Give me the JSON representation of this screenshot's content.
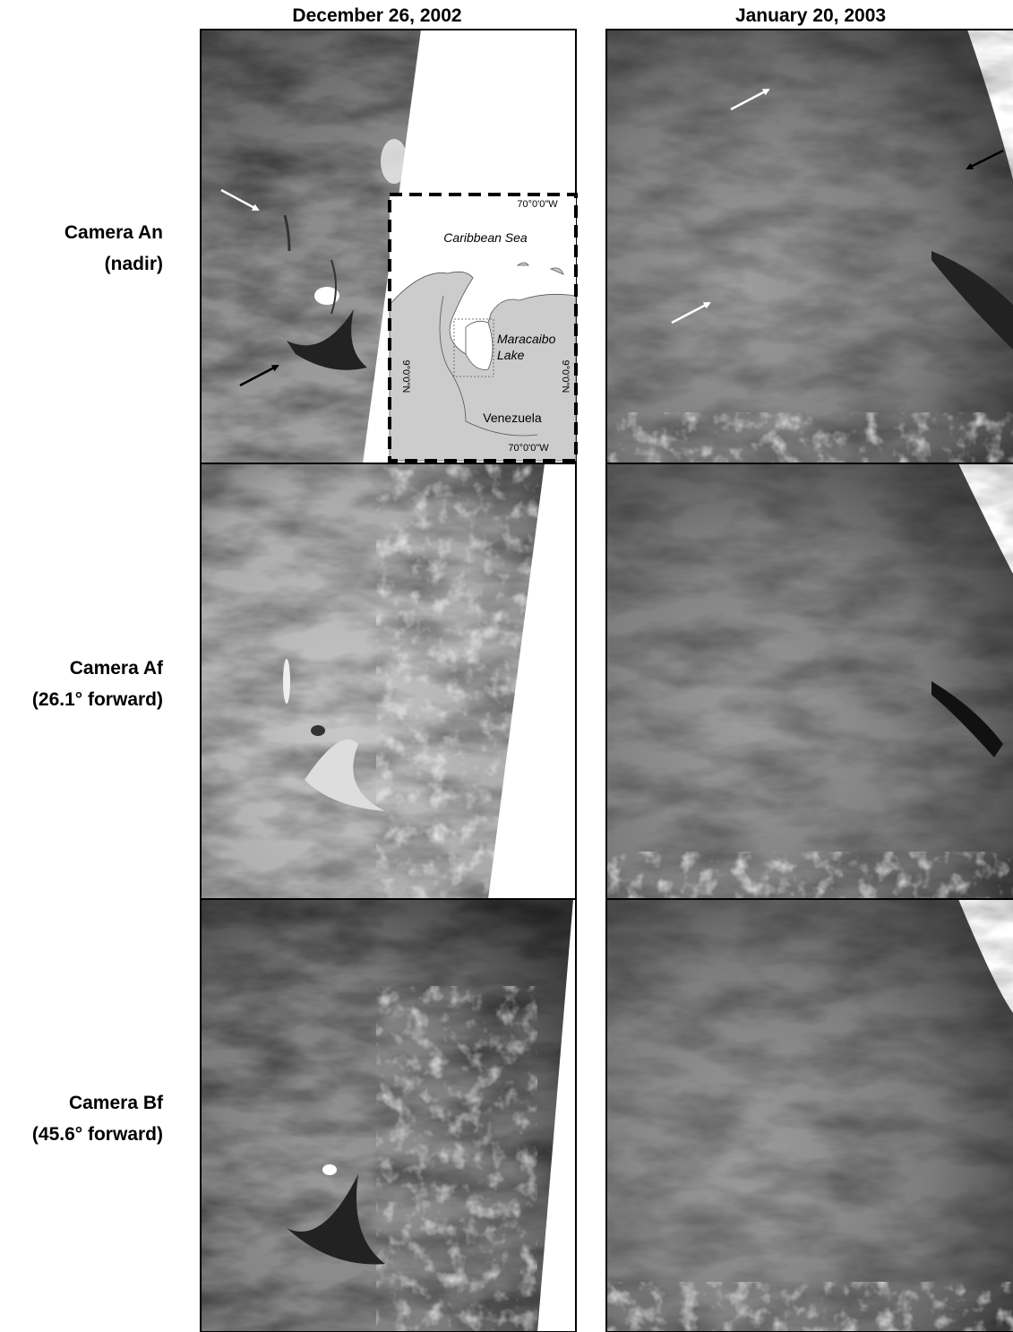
{
  "columns": [
    "December 26, 2002",
    "January 20, 2003"
  ],
  "rows": [
    {
      "label": "Camera An",
      "sublabel": "(nadir)"
    },
    {
      "label": "Camera Af",
      "sublabel": "(26.1° forward)"
    },
    {
      "label": "Camera Bf",
      "sublabel": "(45.6° forward)"
    }
  ],
  "inset_map": {
    "top_longitude": "70°0'0\"W",
    "bottom_longitude": "70°0'0\"W",
    "left_latitude": "9°0'0\"N",
    "right_latitude": "9°0'0\"N",
    "sea": "Caribbean Sea",
    "lake_line1": "Maracaibo",
    "lake_line2": "Lake",
    "country": "Venezuela"
  }
}
